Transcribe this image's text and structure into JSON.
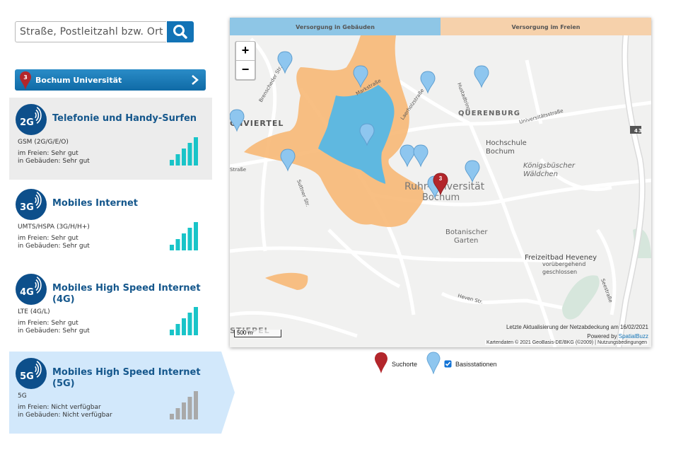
{
  "search": {
    "placeholder": "Straße, Postleitzahl bzw. Ort"
  },
  "location": {
    "badge": "3",
    "name": "Bochum Universität"
  },
  "technologies": [
    {
      "icon": "2G",
      "title": "Telefonie und Handy-Surfen",
      "standard": "GSM (2G/G/E/O)",
      "outdoor": "im Freien: Sehr gut",
      "indoor": "in Gebäuden: Sehr gut"
    },
    {
      "icon": "3G",
      "title": "Mobiles Internet",
      "standard": "UMTS/HSPA (3G/H/H+)",
      "outdoor": "im Freien: Sehr gut",
      "indoor": "in Gebäuden: Sehr gut"
    },
    {
      "icon": "4G",
      "title": "Mobiles High Speed Internet (4G)",
      "standard": "LTE (4G/L)",
      "outdoor": "im Freien: Sehr gut",
      "indoor": "in Gebäuden: Sehr gut"
    },
    {
      "icon": "5G",
      "title": "Mobiles High Speed Internet (5G)",
      "standard": "5G",
      "outdoor": "im Freien: Nicht verfügbar",
      "indoor": "in Gebäuden: Nicht verfügbar"
    }
  ],
  "map": {
    "tabs": [
      "Versorgung in Gebäuden",
      "Versorgung im Freien"
    ],
    "zoom_in": "+",
    "zoom_out": "−",
    "labels": [
      "QUERENBURG",
      "Hochschule",
      "Bochum",
      "Königsbüscher",
      "Wäldchen",
      "Ruhr-Universität",
      "Bochum",
      "Botanischer",
      "Garten",
      "Freizeitbad Heveney",
      "vorübergehend",
      "geschlossen",
      "CHVIERTEL",
      "STIEPEL",
      "Hustadtring",
      "Universitätsstraße",
      "Laerholzstraße",
      "Markstraße",
      "Brenscheder Str.",
      "Heven Str.",
      "Seestraße",
      "Suttner Str.",
      "Straße",
      "43"
    ],
    "marker_badge": "3",
    "scale": "500 m",
    "updated": "Letzte Aktualisierung der Netzabdeckung am 16/02/2021",
    "powered_by": "Powered by",
    "provider": "SpatialBuzz",
    "attribution": "Kartendaten © 2021 GeoBasis-DE/BKG (©2009)",
    "terms": "Nutzungsbedingungen"
  },
  "legend": {
    "search": "Suchorte",
    "stations": "Basisstationen"
  }
}
